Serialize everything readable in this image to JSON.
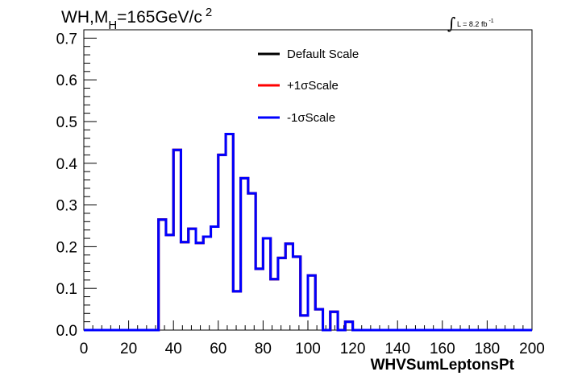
{
  "chart_data": {
    "type": "line",
    "title_main": "WH,M",
    "title_sub": "H",
    "title_rest": "=165GeV/c",
    "title_sup": "2",
    "lumi_text": "L = 8.2 fb",
    "lumi_sup": "-1",
    "xlabel": "WHVSumLeptonsPt",
    "ylabel": "",
    "xlim": [
      0,
      200
    ],
    "ylim": [
      0,
      0.72
    ],
    "x_ticks": [
      "0",
      "20",
      "40",
      "60",
      "80",
      "100",
      "120",
      "140",
      "160",
      "180",
      "200"
    ],
    "y_ticks": [
      "0.0",
      "0.1",
      "0.2",
      "0.3",
      "0.4",
      "0.5",
      "0.6",
      "0.7"
    ],
    "bin_edges": [
      0,
      3.33,
      6.67,
      10,
      13.33,
      16.67,
      20,
      23.33,
      26.67,
      30,
      33.33,
      36.67,
      40,
      43.33,
      46.67,
      50,
      53.33,
      56.67,
      60,
      63.33,
      66.67,
      70,
      73.33,
      76.67,
      80,
      83.33,
      86.67,
      90,
      93.33,
      96.67,
      100,
      103.33,
      106.67,
      110,
      113.33,
      116.67,
      120,
      123.33,
      126.67,
      130,
      133.33,
      136.67,
      140,
      143.33,
      146.67,
      150,
      153.33,
      156.67,
      160,
      163.33,
      166.67,
      170,
      173.33,
      176.67,
      180,
      183.33,
      186.67,
      190,
      193.33,
      196.67,
      200
    ],
    "series": [
      {
        "name": "Default Scale",
        "color": "#000000",
        "values": [
          0,
          0,
          0,
          0,
          0,
          0,
          0,
          0,
          0,
          0,
          0.265,
          0.228,
          0.432,
          0.211,
          0.243,
          0.209,
          0.224,
          0.248,
          0.42,
          0.47,
          0.093,
          0.364,
          0.328,
          0.147,
          0.22,
          0.122,
          0.173,
          0.207,
          0.176,
          0.035,
          0.131,
          0.05,
          0,
          0.044,
          0,
          0.02,
          0,
          0,
          0,
          0,
          0,
          0,
          0,
          0,
          0,
          0,
          0,
          0,
          0,
          0,
          0,
          0,
          0,
          0,
          0,
          0,
          0,
          0,
          0,
          0
        ]
      },
      {
        "name": "+1σScale",
        "color": "#ff0000",
        "values": [
          0,
          0,
          0,
          0,
          0,
          0,
          0,
          0,
          0,
          0,
          0.265,
          0.228,
          0.432,
          0.211,
          0.243,
          0.209,
          0.224,
          0.248,
          0.42,
          0.47,
          0.093,
          0.364,
          0.328,
          0.147,
          0.22,
          0.122,
          0.173,
          0.207,
          0.176,
          0.035,
          0.131,
          0.05,
          0,
          0.044,
          0,
          0.02,
          0,
          0,
          0,
          0,
          0,
          0,
          0,
          0,
          0,
          0,
          0,
          0,
          0,
          0,
          0,
          0,
          0,
          0,
          0,
          0,
          0,
          0,
          0,
          0
        ]
      },
      {
        "name": "-1σScale",
        "color": "#0000ff",
        "values": [
          0,
          0,
          0,
          0,
          0,
          0,
          0,
          0,
          0,
          0,
          0.265,
          0.228,
          0.432,
          0.211,
          0.243,
          0.209,
          0.224,
          0.248,
          0.42,
          0.47,
          0.093,
          0.364,
          0.328,
          0.147,
          0.22,
          0.122,
          0.173,
          0.207,
          0.176,
          0.035,
          0.131,
          0.05,
          0,
          0.044,
          0,
          0.02,
          0,
          0,
          0,
          0,
          0,
          0,
          0,
          0,
          0,
          0,
          0,
          0,
          0,
          0,
          0,
          0,
          0,
          0,
          0,
          0,
          0,
          0,
          0,
          0
        ]
      }
    ],
    "legend_position": "top-center",
    "grid": false
  }
}
